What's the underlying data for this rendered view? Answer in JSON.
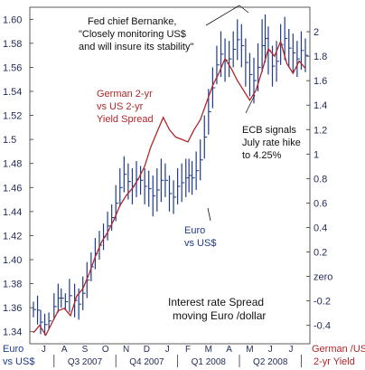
{
  "chart_data": {
    "type": "line",
    "title": "",
    "x_months": [
      "J",
      "A",
      "S",
      "O",
      "N",
      "D",
      "J",
      "F",
      "M",
      "A",
      "M",
      "J",
      "J"
    ],
    "x_quarters": [
      "Q3 2007",
      "Q4 2007",
      "Q1 2008",
      "Q2 2008"
    ],
    "left_axis": {
      "label": "Euro vs US$",
      "ylim": [
        1.33,
        1.61
      ],
      "ticks": [
        "1.60",
        "1.58",
        "1.56",
        "1.54",
        "1.52",
        "1.5",
        "1.48",
        "1.46",
        "1.44",
        "1.42",
        "1.40",
        "1.38",
        "1.36",
        "1.34"
      ]
    },
    "right_axis": {
      "label": "German /US 2-yr Yield",
      "ylim": [
        -0.55,
        2.2
      ],
      "ticks": [
        "2",
        "1.8",
        "1.6",
        "1.4",
        "1.2",
        "1",
        "0.8",
        "0.6",
        "0.4",
        "0.2",
        "zero",
        "-0.2",
        "-0.4"
      ]
    },
    "series": [
      {
        "name": "Euro vs US$",
        "kind": "hlc-bars",
        "color": "#1f3a8a",
        "bars": [
          {
            "x": 0.0,
            "hi": 1.365,
            "lo": 1.352
          },
          {
            "x": 0.2,
            "hi": 1.37,
            "lo": 1.346
          },
          {
            "x": 0.35,
            "hi": 1.358,
            "lo": 1.338
          },
          {
            "x": 0.55,
            "hi": 1.355,
            "lo": 1.337
          },
          {
            "x": 0.75,
            "hi": 1.356,
            "lo": 1.342
          },
          {
            "x": 1.0,
            "hi": 1.372,
            "lo": 1.35
          },
          {
            "x": 1.2,
            "hi": 1.38,
            "lo": 1.356
          },
          {
            "x": 1.35,
            "hi": 1.376,
            "lo": 1.36
          },
          {
            "x": 1.55,
            "hi": 1.372,
            "lo": 1.358
          },
          {
            "x": 1.75,
            "hi": 1.384,
            "lo": 1.356
          },
          {
            "x": 2.0,
            "hi": 1.38,
            "lo": 1.352
          },
          {
            "x": 2.2,
            "hi": 1.376,
            "lo": 1.35
          },
          {
            "x": 2.4,
            "hi": 1.386,
            "lo": 1.358
          },
          {
            "x": 2.6,
            "hi": 1.398,
            "lo": 1.368
          },
          {
            "x": 2.8,
            "hi": 1.406,
            "lo": 1.382
          },
          {
            "x": 3.0,
            "hi": 1.418,
            "lo": 1.392
          },
          {
            "x": 3.2,
            "hi": 1.424,
            "lo": 1.4
          },
          {
            "x": 3.4,
            "hi": 1.43,
            "lo": 1.408
          },
          {
            "x": 3.6,
            "hi": 1.44,
            "lo": 1.416
          },
          {
            "x": 3.8,
            "hi": 1.446,
            "lo": 1.424
          },
          {
            "x": 4.0,
            "hi": 1.462,
            "lo": 1.432
          },
          {
            "x": 4.2,
            "hi": 1.476,
            "lo": 1.444
          },
          {
            "x": 4.4,
            "hi": 1.486,
            "lo": 1.456
          },
          {
            "x": 4.6,
            "hi": 1.48,
            "lo": 1.45
          },
          {
            "x": 4.8,
            "hi": 1.476,
            "lo": 1.446
          },
          {
            "x": 5.0,
            "hi": 1.482,
            "lo": 1.452
          },
          {
            "x": 5.2,
            "hi": 1.478,
            "lo": 1.454
          },
          {
            "x": 5.4,
            "hi": 1.476,
            "lo": 1.446
          },
          {
            "x": 5.6,
            "hi": 1.474,
            "lo": 1.444
          },
          {
            "x": 5.8,
            "hi": 1.47,
            "lo": 1.436
          },
          {
            "x": 6.0,
            "hi": 1.476,
            "lo": 1.44
          },
          {
            "x": 6.2,
            "hi": 1.484,
            "lo": 1.448
          },
          {
            "x": 6.4,
            "hi": 1.48,
            "lo": 1.452
          },
          {
            "x": 6.6,
            "hi": 1.47,
            "lo": 1.44
          },
          {
            "x": 6.8,
            "hi": 1.466,
            "lo": 1.438
          },
          {
            "x": 7.0,
            "hi": 1.476,
            "lo": 1.446
          },
          {
            "x": 7.2,
            "hi": 1.48,
            "lo": 1.448
          },
          {
            "x": 7.4,
            "hi": 1.484,
            "lo": 1.452
          },
          {
            "x": 7.55,
            "hi": 1.484,
            "lo": 1.456
          },
          {
            "x": 7.7,
            "hi": 1.482,
            "lo": 1.454
          },
          {
            "x": 7.9,
            "hi": 1.49,
            "lo": 1.458
          },
          {
            "x": 8.1,
            "hi": 1.5,
            "lo": 1.466
          },
          {
            "x": 8.3,
            "hi": 1.52,
            "lo": 1.484
          },
          {
            "x": 8.5,
            "hi": 1.542,
            "lo": 1.504
          },
          {
            "x": 8.7,
            "hi": 1.56,
            "lo": 1.526
          },
          {
            "x": 8.9,
            "hi": 1.578,
            "lo": 1.546
          },
          {
            "x": 9.1,
            "hi": 1.59,
            "lo": 1.552
          },
          {
            "x": 9.3,
            "hi": 1.584,
            "lo": 1.548
          },
          {
            "x": 9.5,
            "hi": 1.582,
            "lo": 1.552
          },
          {
            "x": 9.7,
            "hi": 1.59,
            "lo": 1.56
          },
          {
            "x": 9.9,
            "hi": 1.6,
            "lo": 1.566
          },
          {
            "x": 10.1,
            "hi": 1.596,
            "lo": 1.56
          },
          {
            "x": 10.3,
            "hi": 1.584,
            "lo": 1.544
          },
          {
            "x": 10.5,
            "hi": 1.572,
            "lo": 1.536
          },
          {
            "x": 10.7,
            "hi": 1.568,
            "lo": 1.53
          },
          {
            "x": 10.9,
            "hi": 1.58,
            "lo": 1.54
          },
          {
            "x": 11.1,
            "hi": 1.6,
            "lo": 1.556
          },
          {
            "x": 11.25,
            "hi": 1.604,
            "lo": 1.564
          },
          {
            "x": 11.4,
            "hi": 1.594,
            "lo": 1.554
          },
          {
            "x": 11.6,
            "hi": 1.578,
            "lo": 1.544
          },
          {
            "x": 11.8,
            "hi": 1.582,
            "lo": 1.548
          },
          {
            "x": 12.0,
            "hi": 1.596,
            "lo": 1.562
          },
          {
            "x": 12.2,
            "hi": 1.602,
            "lo": 1.566
          },
          {
            "x": 12.4,
            "hi": 1.592,
            "lo": 1.56
          },
          {
            "x": 12.6,
            "hi": 1.588,
            "lo": 1.556
          },
          {
            "x": 12.8,
            "hi": 1.582,
            "lo": 1.552
          },
          {
            "x": 13.0,
            "hi": 1.59,
            "lo": 1.558
          },
          {
            "x": 13.2,
            "hi": 1.584,
            "lo": 1.556
          }
        ]
      },
      {
        "name": "German 2-yr vs US 2-yr Yield Spread",
        "kind": "line",
        "color": "#b0262a",
        "points": [
          [
            0.0,
            -0.46
          ],
          [
            0.3,
            -0.4
          ],
          [
            0.6,
            -0.48
          ],
          [
            0.9,
            -0.38
          ],
          [
            1.2,
            -0.28
          ],
          [
            1.5,
            -0.26
          ],
          [
            1.8,
            -0.32
          ],
          [
            2.1,
            -0.16
          ],
          [
            2.4,
            -0.1
          ],
          [
            2.7,
            0.02
          ],
          [
            3.0,
            0.16
          ],
          [
            3.3,
            0.28
          ],
          [
            3.6,
            0.36
          ],
          [
            3.9,
            0.46
          ],
          [
            4.2,
            0.58
          ],
          [
            4.5,
            0.66
          ],
          [
            4.8,
            0.72
          ],
          [
            5.1,
            0.8
          ],
          [
            5.4,
            0.9
          ],
          [
            5.7,
            1.06
          ],
          [
            6.0,
            1.18
          ],
          [
            6.3,
            1.3
          ],
          [
            6.6,
            1.2
          ],
          [
            6.9,
            1.14
          ],
          [
            7.2,
            1.12
          ],
          [
            7.5,
            1.1
          ],
          [
            7.8,
            1.2
          ],
          [
            8.1,
            1.28
          ],
          [
            8.4,
            1.42
          ],
          [
            8.7,
            1.56
          ],
          [
            9.0,
            1.66
          ],
          [
            9.3,
            1.78
          ],
          [
            9.6,
            1.7
          ],
          [
            9.9,
            1.6
          ],
          [
            10.2,
            1.52
          ],
          [
            10.5,
            1.44
          ],
          [
            10.8,
            1.52
          ],
          [
            11.1,
            1.68
          ],
          [
            11.4,
            1.86
          ],
          [
            11.7,
            1.8
          ],
          [
            12.0,
            1.92
          ],
          [
            12.3,
            1.74
          ],
          [
            12.6,
            1.66
          ],
          [
            12.9,
            1.76
          ],
          [
            13.2,
            1.7
          ]
        ]
      }
    ],
    "annotations": {
      "fed": [
        "Fed chief Bernanke,",
        "\"Closely monitoring US$",
        "and will insure its stability\""
      ],
      "german": [
        "German 2-yr",
        "vs US 2-yr",
        "Yield Spread"
      ],
      "euro": [
        "Euro",
        "vs US$"
      ],
      "ecb": [
        "ECB signals",
        "July rate hike",
        "to 4.25%"
      ],
      "center": [
        "Interest rate Spread",
        "moving Euro /dollar"
      ]
    },
    "corner_labels": {
      "left": [
        "Euro",
        "vs US$"
      ],
      "right": [
        "German /US",
        "2-yr Yield"
      ]
    }
  }
}
